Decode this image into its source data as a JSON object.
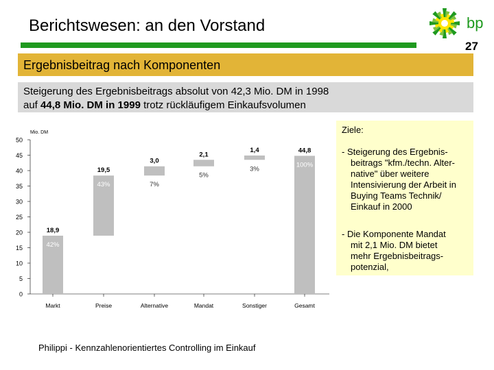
{
  "header": {
    "title": "Berichtswesen: an den Vorstand",
    "page_number": "27",
    "logo_text": "bp"
  },
  "section": {
    "title": "Ergebnisbeitrag nach Komponenten"
  },
  "subtitle": {
    "line1": "Steigerung des Ergebnisbeitrags absolut von 42,3 Mio. DM in 1998",
    "line2_prefix": "auf ",
    "line2_bold1": "44,8 Mio. DM in 1999",
    "line2_suffix": " trotz rückläufigem Einkaufsvolumen"
  },
  "goals": {
    "heading": "Ziele:",
    "item1_lines": [
      "- Steigerung des Ergebnis-",
      "beitrags \"kfm./techn. Alter-",
      "native\" über weitere",
      "Intensivierung der Arbeit in",
      "Buying Teams Technik/",
      "Einkauf in 2000"
    ],
    "item2_lines": [
      "- Die Komponente Mandat",
      "mit 2,1 Mio. DM bietet",
      "mehr Ergebnisbeitrags-",
      "potenzial,"
    ]
  },
  "footer": {
    "text": "Philippi - Kennzahlenorientiertes Controlling im Einkauf"
  },
  "colors": {
    "accent_green": "#1f9a1f",
    "section_yellow": "#e2b437",
    "bar_gray": "#bfbfbf"
  },
  "chart_data": {
    "type": "bar",
    "subtype": "waterfall",
    "ylabel": "Mio. DM",
    "ylim": [
      0,
      50
    ],
    "yticks": [
      0,
      5,
      10,
      15,
      20,
      25,
      30,
      35,
      40,
      45,
      50
    ],
    "categories": [
      "Markt",
      "Preise",
      "Alternative",
      "Mandat",
      "Sonstiger",
      "Gesamt"
    ],
    "values": [
      18.9,
      19.5,
      3.0,
      2.1,
      1.4,
      44.8
    ],
    "bases": [
      0,
      18.9,
      38.4,
      41.4,
      43.5,
      0
    ],
    "value_labels": [
      "18,9",
      "19,5",
      "3,0",
      "2,1",
      "1,4",
      "44,8"
    ],
    "percent_labels": [
      "42%",
      "43%",
      "7%",
      "5%",
      "3%",
      "100%"
    ],
    "grid": false
  }
}
